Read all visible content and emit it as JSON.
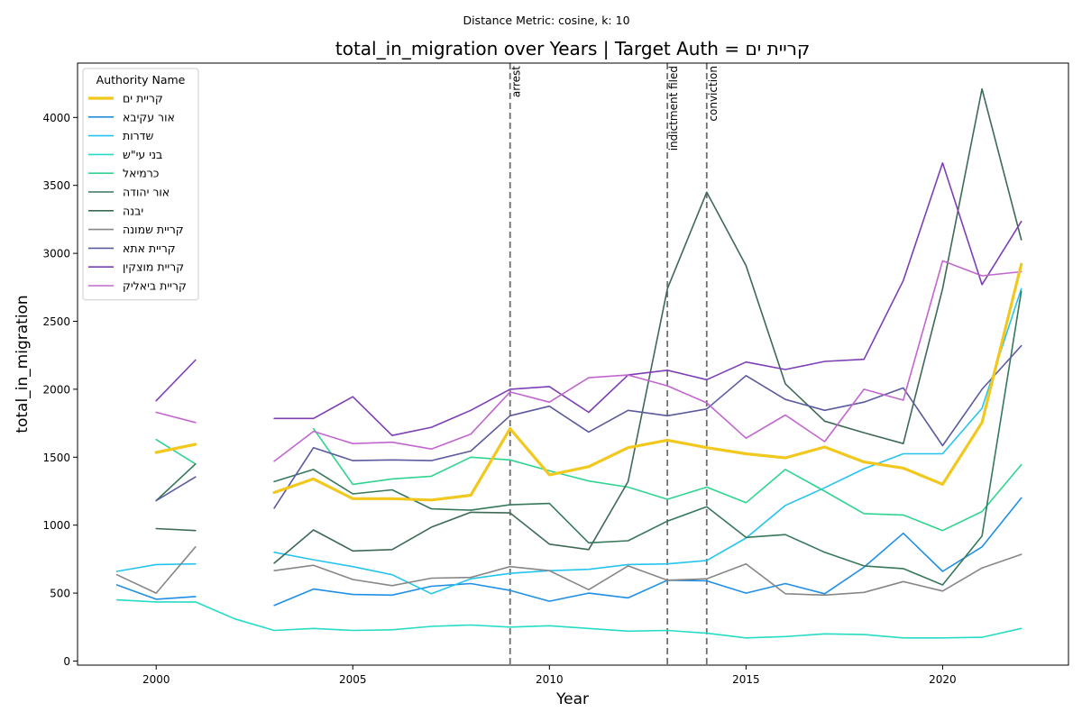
{
  "chart_data": {
    "type": "line",
    "suptitle": "Distance Metric: cosine, k: 10",
    "title": "total_in_migration over Years | Target Auth = קריית ים",
    "xlabel": "Year",
    "ylabel": "total_in_migration",
    "xlim": [
      1998,
      2023.2
    ],
    "ylim": [
      -30,
      4400
    ],
    "xticks": [
      2000,
      2005,
      2010,
      2015,
      2020
    ],
    "yticks": [
      0,
      500,
      1000,
      1500,
      2000,
      2500,
      3000,
      3500,
      4000
    ],
    "legend_title": "Authority Name",
    "legend_position": "upper-left",
    "x": [
      1999,
      2000,
      2001,
      2002,
      2003,
      2004,
      2005,
      2006,
      2007,
      2008,
      2009,
      2010,
      2011,
      2012,
      2013,
      2014,
      2015,
      2016,
      2017,
      2018,
      2019,
      2020,
      2021,
      2022
    ],
    "events": [
      {
        "x": 2009,
        "label": "arrest"
      },
      {
        "x": 2013,
        "label": "indictment filed"
      },
      {
        "x": 2014,
        "label": "conviction"
      }
    ],
    "series": [
      {
        "name": "קריית ים",
        "color": "#f2c81e",
        "width": 3.2,
        "values": [
          null,
          1535,
          1595,
          null,
          1240,
          1340,
          1195,
          1195,
          1185,
          1220,
          1710,
          1370,
          1430,
          1570,
          1625,
          1570,
          1525,
          1495,
          1575,
          1465,
          1420,
          1300,
          1755,
          2920
        ]
      },
      {
        "name": "אור עקיבא",
        "color": "#1f8fe6",
        "width": 1.6,
        "values": [
          560,
          455,
          475,
          null,
          410,
          530,
          490,
          485,
          550,
          570,
          520,
          440,
          500,
          465,
          595,
          590,
          500,
          570,
          495,
          690,
          940,
          660,
          840,
          1200
        ]
      },
      {
        "name": "שדרות",
        "color": "#25c4ee",
        "width": 1.6,
        "values": [
          660,
          710,
          715,
          null,
          800,
          745,
          695,
          635,
          495,
          605,
          645,
          665,
          675,
          710,
          715,
          740,
          905,
          1145,
          1275,
          1415,
          1525,
          1525,
          1860,
          2740
        ]
      },
      {
        "name": "בני עי\"ש",
        "color": "#26dcc4",
        "width": 1.6,
        "values": [
          450,
          435,
          435,
          310,
          225,
          240,
          225,
          230,
          255,
          265,
          250,
          260,
          240,
          220,
          225,
          205,
          170,
          180,
          200,
          195,
          170,
          170,
          175,
          240
        ]
      },
      {
        "name": "כרמיאל",
        "color": "#2fd490",
        "width": 1.6,
        "values": [
          null,
          1630,
          1450,
          null,
          null,
          1710,
          1300,
          1340,
          1360,
          1500,
          1480,
          1400,
          1325,
          1280,
          1190,
          1280,
          1165,
          1410,
          1250,
          1085,
          1075,
          960,
          1100,
          1445
        ]
      },
      {
        "name": "אור יהודה",
        "color": "#36785a",
        "width": 1.6,
        "values": [
          null,
          1180,
          1450,
          null,
          1320,
          1410,
          1230,
          1260,
          1120,
          1110,
          1150,
          1160,
          870,
          885,
          1030,
          1135,
          910,
          930,
          800,
          700,
          680,
          560,
          920,
          2720
        ]
      },
      {
        "name": "יבנה",
        "color": "#3e6a55",
        "width": 1.6,
        "values": [
          null,
          975,
          960,
          null,
          720,
          965,
          810,
          820,
          985,
          1095,
          1090,
          860,
          820,
          1320,
          2740,
          3450,
          2910,
          2040,
          1765,
          1680,
          1600,
          2740,
          4210,
          3100
        ]
      },
      {
        "name": "קריית שמונה",
        "color": "#878787",
        "width": 1.6,
        "values": [
          635,
          500,
          840,
          null,
          665,
          705,
          600,
          555,
          610,
          615,
          695,
          665,
          525,
          700,
          595,
          605,
          715,
          495,
          485,
          505,
          585,
          515,
          685,
          785
        ]
      },
      {
        "name": "קריית אתא",
        "color": "#5a5a9e",
        "width": 1.6,
        "values": [
          null,
          1180,
          1355,
          null,
          1125,
          1570,
          1475,
          1480,
          1475,
          1545,
          1805,
          1875,
          1685,
          1845,
          1805,
          1855,
          2100,
          1925,
          1845,
          1905,
          2010,
          1585,
          2000,
          2320
        ]
      },
      {
        "name": "קריית מוצקין",
        "color": "#7d3fb4",
        "width": 1.6,
        "values": [
          null,
          1915,
          2215,
          null,
          1785,
          1785,
          1945,
          1660,
          1720,
          1845,
          2000,
          2020,
          1830,
          2105,
          2140,
          2070,
          2200,
          2145,
          2205,
          2220,
          2800,
          3665,
          2770,
          3235
        ]
      },
      {
        "name": "קריית ביאליק",
        "color": "#c266cf",
        "width": 1.6,
        "values": [
          null,
          1830,
          1755,
          null,
          1470,
          1690,
          1600,
          1610,
          1560,
          1670,
          1980,
          1905,
          2085,
          2105,
          2025,
          1900,
          1640,
          1810,
          1615,
          2000,
          1920,
          2945,
          2835,
          2865
        ]
      }
    ]
  }
}
